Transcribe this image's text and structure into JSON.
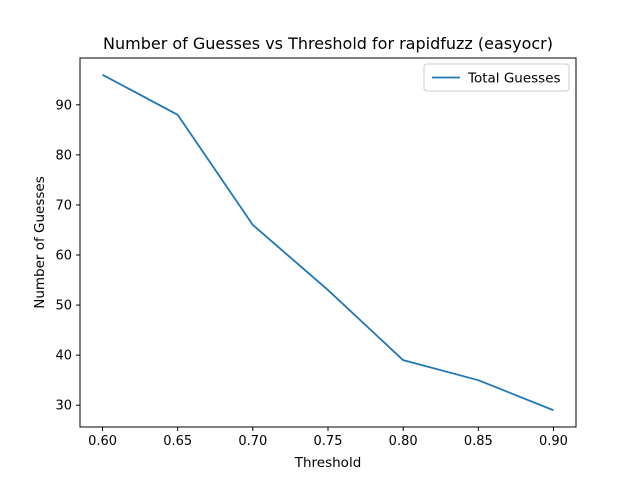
{
  "chart_data": {
    "type": "line",
    "title": "Number of Guesses vs Threshold for rapidfuzz (easyocr)",
    "xlabel": "Threshold",
    "ylabel": "Number of Guesses",
    "x": [
      0.6,
      0.65,
      0.7,
      0.75,
      0.8,
      0.85,
      0.9
    ],
    "series": [
      {
        "name": "Total Guesses",
        "values": [
          96,
          88,
          66,
          53,
          39,
          35,
          29
        ],
        "color": "#1f77b4"
      }
    ],
    "xlim": [
      0.585,
      0.915
    ],
    "ylim": [
      25.65,
      99.35
    ],
    "xticks": [
      0.6,
      0.65,
      0.7,
      0.75,
      0.8,
      0.85,
      0.9
    ],
    "xtick_labels": [
      "0.60",
      "0.65",
      "0.70",
      "0.75",
      "0.80",
      "0.85",
      "0.90"
    ],
    "yticks": [
      30,
      40,
      50,
      60,
      70,
      80,
      90
    ],
    "ytick_labels": [
      "30",
      "40",
      "50",
      "60",
      "70",
      "80",
      "90"
    ],
    "grid": false,
    "legend_position": "top-right"
  }
}
